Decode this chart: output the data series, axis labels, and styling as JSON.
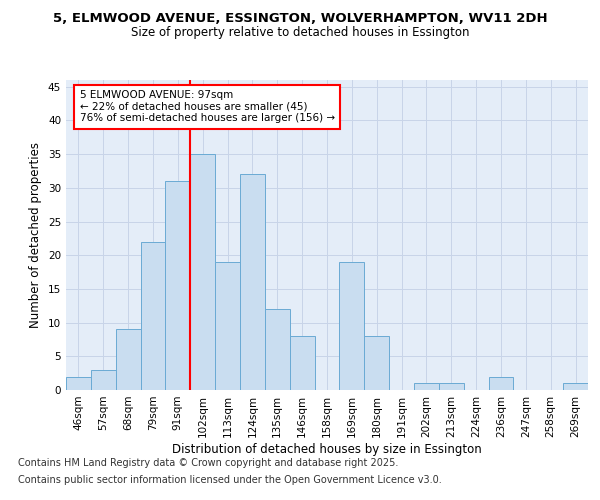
{
  "title_line1": "5, ELMWOOD AVENUE, ESSINGTON, WOLVERHAMPTON, WV11 2DH",
  "title_line2": "Size of property relative to detached houses in Essington",
  "xlabel": "Distribution of detached houses by size in Essington",
  "ylabel": "Number of detached properties",
  "categories": [
    "46sqm",
    "57sqm",
    "68sqm",
    "79sqm",
    "91sqm",
    "102sqm",
    "113sqm",
    "124sqm",
    "135sqm",
    "146sqm",
    "158sqm",
    "169sqm",
    "180sqm",
    "191sqm",
    "202sqm",
    "213sqm",
    "224sqm",
    "236sqm",
    "247sqm",
    "258sqm",
    "269sqm"
  ],
  "values": [
    2,
    3,
    9,
    22,
    31,
    35,
    19,
    32,
    12,
    8,
    0,
    19,
    8,
    0,
    1,
    1,
    0,
    2,
    0,
    0,
    1
  ],
  "bar_color": "#c9ddf0",
  "bar_edge_color": "#6aaad4",
  "red_line_bin_index": 5,
  "annotation_text_line1": "5 ELMWOOD AVENUE: 97sqm",
  "annotation_text_line2": "← 22% of detached houses are smaller (45)",
  "annotation_text_line3": "76% of semi-detached houses are larger (156) →",
  "annotation_box_color": "white",
  "annotation_box_edge_color": "red",
  "ylim": [
    0,
    46
  ],
  "yticks": [
    0,
    5,
    10,
    15,
    20,
    25,
    30,
    35,
    40,
    45
  ],
  "grid_color": "#c8d4e8",
  "background_color": "#e4edf8",
  "footer_line1": "Contains HM Land Registry data © Crown copyright and database right 2025.",
  "footer_line2": "Contains public sector information licensed under the Open Government Licence v3.0.",
  "title_fontsize": 9.5,
  "subtitle_fontsize": 8.5,
  "tick_fontsize": 7.5,
  "label_fontsize": 8.5,
  "footer_fontsize": 7
}
